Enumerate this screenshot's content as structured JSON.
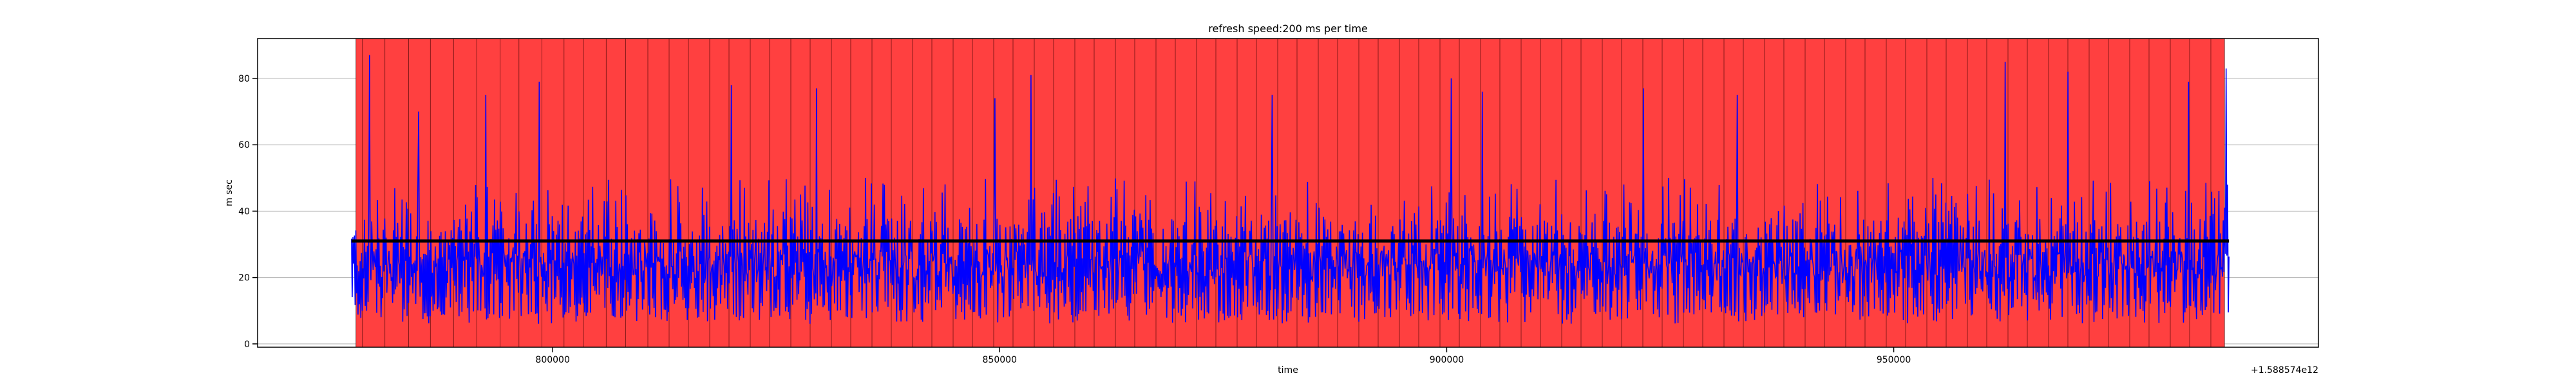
{
  "chart_data": {
    "type": "line",
    "title": "refresh speed:200 ms per time",
    "xlabel": "time",
    "ylabel": "m sec",
    "x_offset_label": "+1.588574e12",
    "xlim": [
      767000,
      997500
    ],
    "ylim": [
      -1,
      92
    ],
    "x_ticks": [
      800000,
      850000,
      900000,
      950000
    ],
    "x_tick_labels": [
      "800000",
      "850000",
      "900000",
      "950000"
    ],
    "y_ticks": [
      0,
      20,
      40,
      60,
      80
    ],
    "y_tick_labels": [
      "0",
      "20",
      "40",
      "60",
      "80"
    ],
    "grid": true,
    "shaded_region": {
      "x_start": 778000,
      "x_end": 987000,
      "color": "#ff4040"
    },
    "series": [
      {
        "style": "line",
        "color": "#0000ff",
        "x_start": 777500,
        "x_end": 987500,
        "typical_range": [
          8,
          50
        ],
        "mean": 28,
        "peaks": [
          {
            "x": 779500,
            "y": 87
          },
          {
            "x": 785000,
            "y": 70
          },
          {
            "x": 792500,
            "y": 75
          },
          {
            "x": 798500,
            "y": 79
          },
          {
            "x": 820000,
            "y": 78
          },
          {
            "x": 829500,
            "y": 77
          },
          {
            "x": 849500,
            "y": 74
          },
          {
            "x": 853500,
            "y": 81
          },
          {
            "x": 880500,
            "y": 75
          },
          {
            "x": 900500,
            "y": 80
          },
          {
            "x": 904000,
            "y": 76
          },
          {
            "x": 922000,
            "y": 77
          },
          {
            "x": 932500,
            "y": 75
          },
          {
            "x": 962500,
            "y": 85
          },
          {
            "x": 969500,
            "y": 82
          },
          {
            "x": 983000,
            "y": 79
          },
          {
            "x": 987200,
            "y": 83
          }
        ]
      },
      {
        "style": "line",
        "color": "#000000",
        "x_start": 777500,
        "x_end": 987500,
        "y": 31
      }
    ]
  }
}
